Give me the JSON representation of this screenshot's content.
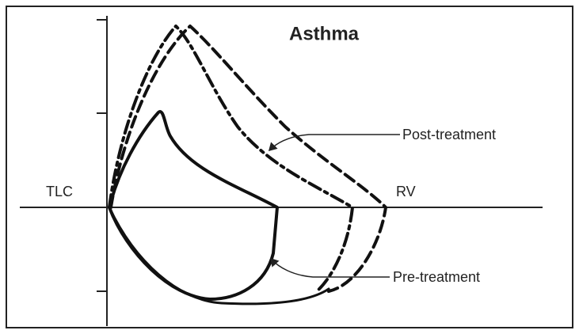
{
  "title": "Asthma",
  "axis_labels": {
    "left": "TLC",
    "right": "RV"
  },
  "annotations": [
    "Post-treatment",
    "Pre-treatment"
  ]
}
